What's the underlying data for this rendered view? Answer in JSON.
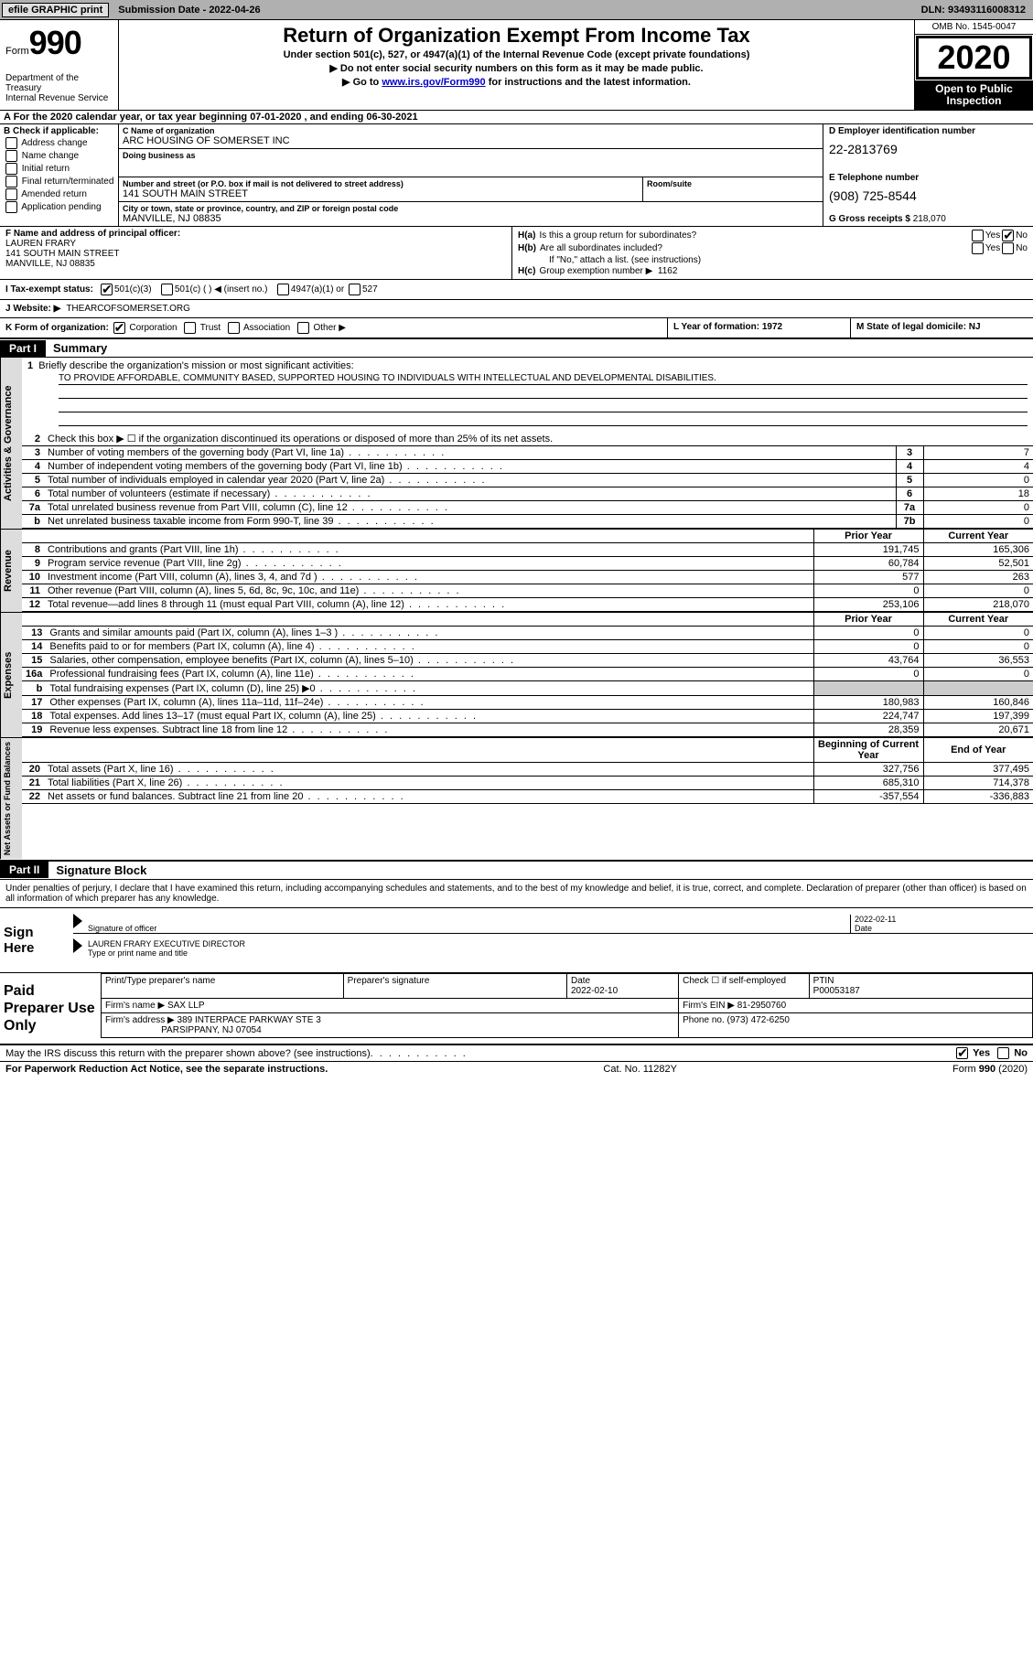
{
  "topbar": {
    "efile": "efile GRAPHIC print",
    "submission": "Submission Date - 2022-04-26",
    "dln": "DLN: 93493116008312"
  },
  "header": {
    "form_word": "Form",
    "form_num": "990",
    "dept": "Department of the Treasury\nInternal Revenue Service",
    "title": "Return of Organization Exempt From Income Tax",
    "subtitle": "Under section 501(c), 527, or 4947(a)(1) of the Internal Revenue Code (except private foundations)",
    "note1": "▶ Do not enter social security numbers on this form as it may be made public.",
    "note2_pre": "▶ Go to ",
    "note2_link": "www.irs.gov/Form990",
    "note2_post": " for instructions and the latest information.",
    "omb": "OMB No. 1545-0047",
    "year": "2020",
    "inspect": "Open to Public Inspection"
  },
  "line_a": "A For the 2020 calendar year, or tax year beginning 07-01-2020   , and ending 06-30-2021",
  "col_b": {
    "hd": "B Check if applicable:",
    "opts": [
      "Address change",
      "Name change",
      "Initial return",
      "Final return/terminated",
      "Amended return",
      "Application pending"
    ]
  },
  "org": {
    "name_lbl": "C Name of organization",
    "name": "ARC HOUSING OF SOMERSET INC",
    "dba_lbl": "Doing business as",
    "dba": "",
    "addr_lbl": "Number and street (or P.O. box if mail is not delivered to street address)",
    "room_lbl": "Room/suite",
    "addr": "141 SOUTH MAIN STREET",
    "city_lbl": "City or town, state or province, country, and ZIP or foreign postal code",
    "city": "MANVILLE, NJ  08835"
  },
  "col_d": {
    "ein_lbl": "D Employer identification number",
    "ein": "22-2813769",
    "tel_lbl": "E Telephone number",
    "tel": "(908) 725-8544",
    "gross_lbl": "G Gross receipts $",
    "gross": "218,070"
  },
  "officer": {
    "lbl": "F  Name and address of principal officer:",
    "name": "LAUREN FRARY",
    "addr1": "141 SOUTH MAIN STREET",
    "addr2": "MANVILLE, NJ  08835"
  },
  "h": {
    "a": "Is this a group return for subordinates?",
    "b": "Are all subordinates included?",
    "b_note": "If \"No,\" attach a list. (see instructions)",
    "c": "Group exemption number ▶",
    "c_val": "1162",
    "yes": "Yes",
    "no": "No"
  },
  "status": {
    "lbl": "I  Tax-exempt status:",
    "o1": "501(c)(3)",
    "o2": "501(c) (   ) ◀ (insert no.)",
    "o3": "4947(a)(1) or",
    "o4": "527"
  },
  "website": {
    "lbl": "J  Website: ▶",
    "val": "THEARCOFSOMERSET.ORG"
  },
  "korg": {
    "lbl": "K Form of organization:",
    "o1": "Corporation",
    "o2": "Trust",
    "o3": "Association",
    "o4": "Other ▶"
  },
  "lm": {
    "l": "L Year of formation: 1972",
    "m": "M State of legal domicile: NJ"
  },
  "part1": {
    "hdr": "Part I",
    "title": "Summary"
  },
  "tabs": {
    "gov": "Activities & Governance",
    "rev": "Revenue",
    "exp": "Expenses",
    "net": "Net Assets or Fund Balances"
  },
  "q1": {
    "num": "1",
    "txt": "Briefly describe the organization's mission or most significant activities:",
    "mission": "TO PROVIDE AFFORDABLE, COMMUNITY BASED, SUPPORTED HOUSING TO INDIVIDUALS WITH INTELLECTUAL AND DEVELOPMENTAL DISABILITIES."
  },
  "gov_lines": [
    {
      "n": "2",
      "t": "Check this box ▶ ☐  if the organization discontinued its operations or disposed of more than 25% of its net assets.",
      "box": "",
      "v": ""
    },
    {
      "n": "3",
      "t": "Number of voting members of the governing body (Part VI, line 1a)",
      "box": "3",
      "v": "7"
    },
    {
      "n": "4",
      "t": "Number of independent voting members of the governing body (Part VI, line 1b)",
      "box": "4",
      "v": "4"
    },
    {
      "n": "5",
      "t": "Total number of individuals employed in calendar year 2020 (Part V, line 2a)",
      "box": "5",
      "v": "0"
    },
    {
      "n": "6",
      "t": "Total number of volunteers (estimate if necessary)",
      "box": "6",
      "v": "18"
    },
    {
      "n": "7a",
      "t": "Total unrelated business revenue from Part VIII, column (C), line 12",
      "box": "7a",
      "v": "0"
    },
    {
      "n": "b",
      "t": "Net unrelated business taxable income from Form 990-T, line 39",
      "box": "7b",
      "v": "0"
    }
  ],
  "money_hdr": {
    "py": "Prior Year",
    "cy": "Current Year"
  },
  "rev_lines": [
    {
      "n": "8",
      "t": "Contributions and grants (Part VIII, line 1h)",
      "py": "191,745",
      "cy": "165,306"
    },
    {
      "n": "9",
      "t": "Program service revenue (Part VIII, line 2g)",
      "py": "60,784",
      "cy": "52,501"
    },
    {
      "n": "10",
      "t": "Investment income (Part VIII, column (A), lines 3, 4, and 7d )",
      "py": "577",
      "cy": "263"
    },
    {
      "n": "11",
      "t": "Other revenue (Part VIII, column (A), lines 5, 6d, 8c, 9c, 10c, and 11e)",
      "py": "0",
      "cy": "0"
    },
    {
      "n": "12",
      "t": "Total revenue—add lines 8 through 11 (must equal Part VIII, column (A), line 12)",
      "py": "253,106",
      "cy": "218,070"
    }
  ],
  "exp_lines": [
    {
      "n": "13",
      "t": "Grants and similar amounts paid (Part IX, column (A), lines 1–3 )",
      "py": "0",
      "cy": "0"
    },
    {
      "n": "14",
      "t": "Benefits paid to or for members (Part IX, column (A), line 4)",
      "py": "0",
      "cy": "0"
    },
    {
      "n": "15",
      "t": "Salaries, other compensation, employee benefits (Part IX, column (A), lines 5–10)",
      "py": "43,764",
      "cy": "36,553"
    },
    {
      "n": "16a",
      "t": "Professional fundraising fees (Part IX, column (A), line 11e)",
      "py": "0",
      "cy": "0"
    },
    {
      "n": "b",
      "t": "Total fundraising expenses (Part IX, column (D), line 25) ▶0",
      "py": "",
      "cy": "",
      "shade": true
    },
    {
      "n": "17",
      "t": "Other expenses (Part IX, column (A), lines 11a–11d, 11f–24e)",
      "py": "180,983",
      "cy": "160,846"
    },
    {
      "n": "18",
      "t": "Total expenses. Add lines 13–17 (must equal Part IX, column (A), line 25)",
      "py": "224,747",
      "cy": "197,399"
    },
    {
      "n": "19",
      "t": "Revenue less expenses. Subtract line 18 from line 12",
      "py": "28,359",
      "cy": "20,671"
    }
  ],
  "net_hdr": {
    "b": "Beginning of Current Year",
    "e": "End of Year"
  },
  "net_lines": [
    {
      "n": "20",
      "t": "Total assets (Part X, line 16)",
      "py": "327,756",
      "cy": "377,495"
    },
    {
      "n": "21",
      "t": "Total liabilities (Part X, line 26)",
      "py": "685,310",
      "cy": "714,378"
    },
    {
      "n": "22",
      "t": "Net assets or fund balances. Subtract line 21 from line 20",
      "py": "-357,554",
      "cy": "-336,883"
    }
  ],
  "part2": {
    "hdr": "Part II",
    "title": "Signature Block"
  },
  "sig_intro": "Under penalties of perjury, I declare that I have examined this return, including accompanying schedules and statements, and to the best of my knowledge and belief, it is true, correct, and complete. Declaration of preparer (other than officer) is based on all information of which preparer has any knowledge.",
  "sign": {
    "lbl": "Sign Here",
    "sig_lbl": "Signature of officer",
    "date_lbl": "Date",
    "date": "2022-02-11",
    "name": "LAUREN FRARY EXECUTIVE DIRECTOR",
    "name_lbl": "Type or print name and title"
  },
  "paid": {
    "lbl": "Paid Preparer Use Only",
    "h1": "Print/Type preparer's name",
    "h2": "Preparer's signature",
    "h3": "Date",
    "h3v": "2022-02-10",
    "h4": "Check ☐ if self-employed",
    "h5": "PTIN",
    "h5v": "P00053187",
    "firm_lbl": "Firm's name    ▶",
    "firm": "SAX LLP",
    "ein_lbl": "Firm's EIN ▶",
    "ein": "81-2950760",
    "addr_lbl": "Firm's address ▶",
    "addr1": "389 INTERPACE PARKWAY STE 3",
    "addr2": "PARSIPPANY, NJ  07054",
    "phone_lbl": "Phone no.",
    "phone": "(973) 472-6250"
  },
  "irs_q": "May the IRS discuss this return with the preparer shown above? (see instructions)",
  "footer": {
    "left": "For Paperwork Reduction Act Notice, see the separate instructions.",
    "mid": "Cat. No. 11282Y",
    "right": "Form 990 (2020)"
  }
}
